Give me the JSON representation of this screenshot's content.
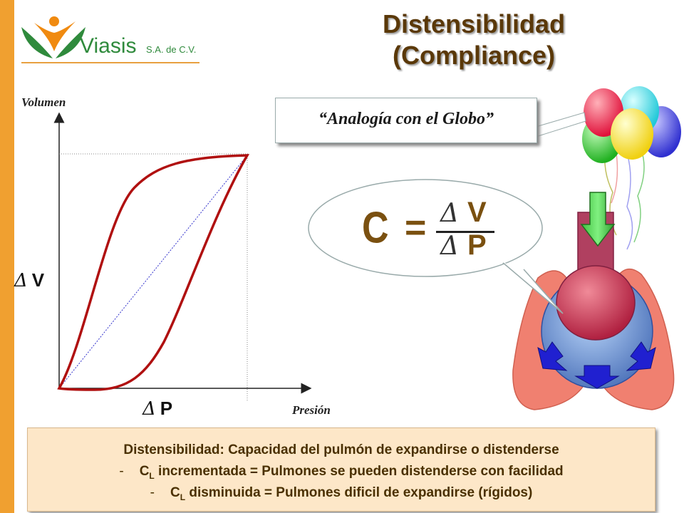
{
  "colors": {
    "sidebar": "#f0a030",
    "logo_green": "#2f8a3c",
    "logo_orange": "#f08a10",
    "title": "#5a3808",
    "curve": "#b01010",
    "diagonal": "#3333cc",
    "formula": "#7a5010",
    "def_box": "#fde7c8"
  },
  "logo": {
    "name": "Viasis",
    "suffix": "S.A. de C.V."
  },
  "title": {
    "line1": "Distensibilidad",
    "line2": "(Compliance)"
  },
  "graph": {
    "ylabel": "Volumen",
    "xlabel": "Presión",
    "delta_v": "V",
    "delta_p": "P",
    "delta_symbol": "Δ"
  },
  "analogy": {
    "text": "“Analogía con el Globo”"
  },
  "formula": {
    "lhs": "C",
    "equals": "=",
    "numerator": "V",
    "denominator": "P",
    "delta_symbol": "Δ"
  },
  "definition": {
    "heading": "Distensibilidad: Capacidad del pulmón de expandirse o distenderse",
    "item1_prefix": "C",
    "item1_sub": "L",
    "item1_text": " incrementada = Pulmones se pueden distenderse con facilidad",
    "item2_prefix": "C",
    "item2_sub": "L",
    "item2_text": " disminuida = Pulmones dificil de expandirse (rígidos)",
    "dash": "-"
  },
  "icons": [
    "balloons-icon",
    "lungs-icon",
    "down-arrow-icon",
    "expansion-arrow-icon"
  ]
}
